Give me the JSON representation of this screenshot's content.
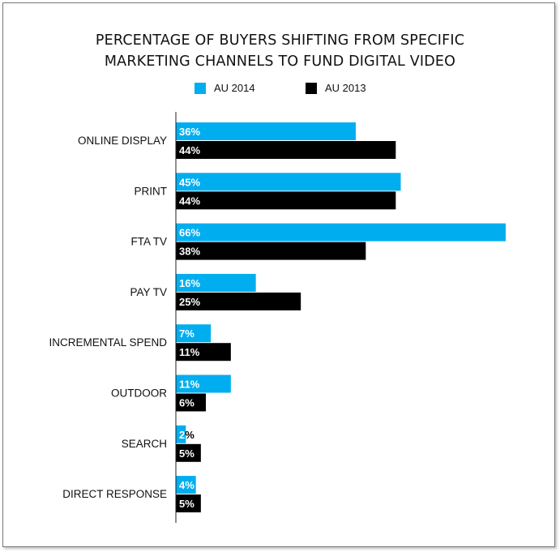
{
  "chart_data": {
    "type": "bar",
    "orientation": "horizontal",
    "title_line1": "PERCENTAGE OF BUYERS SHIFTING FROM SPECIFIC",
    "title_line2": "MARKETING CHANNELS TO FUND DIGITAL VIDEO",
    "categories": [
      "ONLINE DISPLAY",
      "PRINT",
      "FTA TV",
      "PAY TV",
      "INCREMENTAL SPEND",
      "OUTDOOR",
      "SEARCH",
      "DIRECT RESPONSE"
    ],
    "series": [
      {
        "name": "AU 2014",
        "color": "#00aeef",
        "values": [
          36,
          45,
          66,
          16,
          7,
          11,
          2,
          4
        ]
      },
      {
        "name": "AU 2013",
        "color": "#000000",
        "values": [
          44,
          44,
          38,
          25,
          11,
          6,
          5,
          5
        ]
      }
    ],
    "value_suffix": "%",
    "xlim": [
      0,
      70
    ],
    "grid": false,
    "legend_position": "top-center"
  }
}
